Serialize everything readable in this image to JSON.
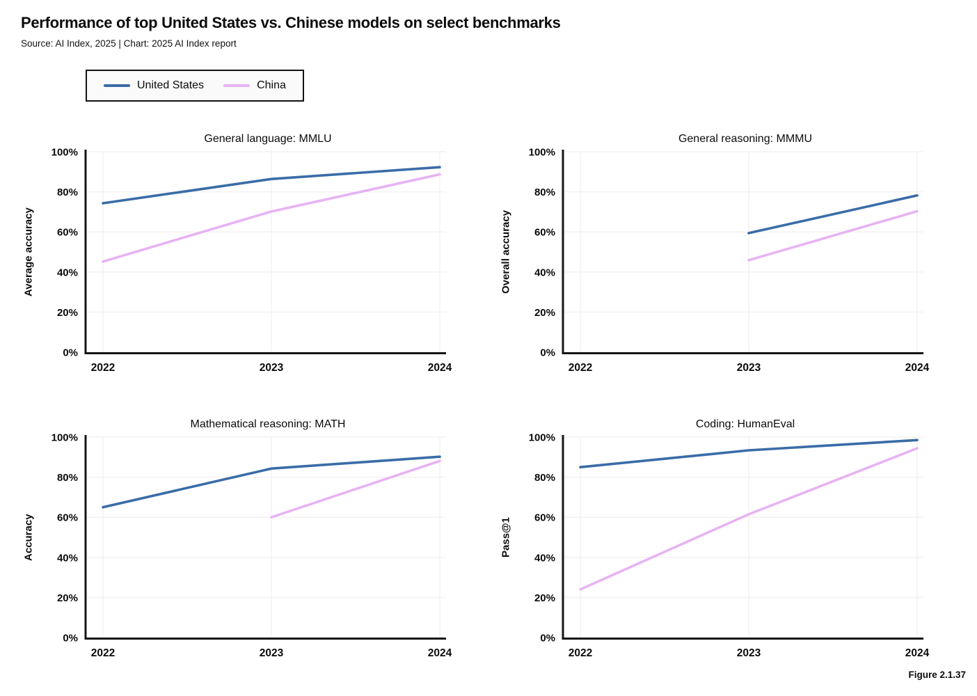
{
  "header": {
    "title": "Performance of top United States vs. Chinese models on select benchmarks",
    "subtitle": "Source: AI Index, 2025 | Chart: 2025 AI Index report"
  },
  "legend": {
    "position": "top-left",
    "items": [
      {
        "label": "United States",
        "color": "#3a6ca7"
      },
      {
        "label": "China",
        "color": "#e7b3f3"
      }
    ]
  },
  "figure_label": "Figure 2.1.37",
  "colors": {
    "united_states_line": "#3a6ca7",
    "china_line": "#e7b3f3",
    "grid": "#f4f2f1",
    "axis": "#151515",
    "text": "#0b0b0b",
    "legend_background": "#fafafa"
  },
  "chart_data": [
    {
      "type": "line",
      "title": "General language: MMLU",
      "xlabel": "",
      "ylabel": "Average accuracy",
      "categories": [
        "2022",
        "2023",
        "2024"
      ],
      "y_ticks": [
        "0%",
        "20%",
        "40%",
        "60%",
        "80%",
        "100%"
      ],
      "ylim": [
        0,
        100
      ],
      "grid": true,
      "series": [
        {
          "name": "United States",
          "color": "#3a6ca7",
          "x": [
            "2022",
            "2023",
            "2024"
          ],
          "values": [
            74.3,
            86.4,
            92.3
          ]
        },
        {
          "name": "China",
          "color": "#e7b3f3",
          "x": [
            "2022",
            "2023",
            "2024"
          ],
          "values": [
            45.2,
            70.2,
            88.7
          ]
        }
      ]
    },
    {
      "type": "line",
      "title": "General reasoning: MMMU",
      "xlabel": "",
      "ylabel": "Overall accuracy",
      "categories": [
        "2022",
        "2023",
        "2024"
      ],
      "y_ticks": [
        "0%",
        "20%",
        "40%",
        "60%",
        "80%",
        "100%"
      ],
      "ylim": [
        0,
        100
      ],
      "grid": true,
      "series": [
        {
          "name": "United States",
          "color": "#3a6ca7",
          "x": [
            "2023",
            "2024"
          ],
          "values": [
            59.4,
            78.2
          ]
        },
        {
          "name": "China",
          "color": "#e7b3f3",
          "x": [
            "2023",
            "2024"
          ],
          "values": [
            45.9,
            70.3
          ]
        }
      ]
    },
    {
      "type": "line",
      "title": "Mathematical reasoning: MATH",
      "xlabel": "",
      "ylabel": "Accuracy",
      "categories": [
        "2022",
        "2023",
        "2024"
      ],
      "y_ticks": [
        "0%",
        "20%",
        "40%",
        "60%",
        "80%",
        "100%"
      ],
      "ylim": [
        0,
        100
      ],
      "grid": true,
      "series": [
        {
          "name": "United States",
          "color": "#3a6ca7",
          "x": [
            "2022",
            "2023",
            "2024"
          ],
          "values": [
            65.0,
            84.3,
            90.2
          ]
        },
        {
          "name": "China",
          "color": "#e7b3f3",
          "x": [
            "2023",
            "2024"
          ],
          "values": [
            60.0,
            88.1
          ]
        }
      ]
    },
    {
      "type": "line",
      "title": "Coding: HumanEval",
      "xlabel": "",
      "ylabel": "Pass@1",
      "categories": [
        "2022",
        "2023",
        "2024"
      ],
      "y_ticks": [
        "0%",
        "20%",
        "40%",
        "60%",
        "80%",
        "100%"
      ],
      "ylim": [
        0,
        100
      ],
      "grid": true,
      "series": [
        {
          "name": "United States",
          "color": "#3a6ca7",
          "x": [
            "2022",
            "2023",
            "2024"
          ],
          "values": [
            85.0,
            93.4,
            98.5
          ]
        },
        {
          "name": "China",
          "color": "#e7b3f3",
          "x": [
            "2022",
            "2023",
            "2024"
          ],
          "values": [
            24.0,
            61.5,
            94.4
          ]
        }
      ]
    }
  ]
}
